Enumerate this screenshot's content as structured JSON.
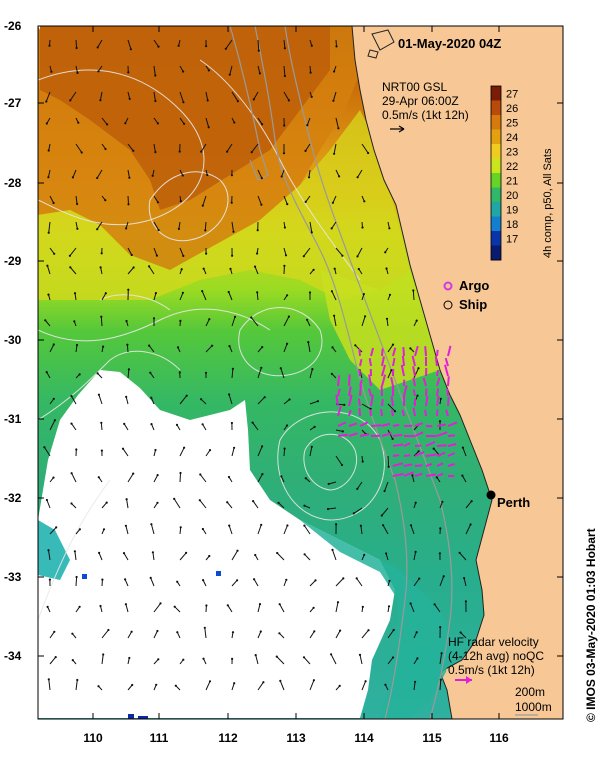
{
  "title": "01-May-2020 04Z",
  "nrt_label": {
    "line1": "NRT00 GSL",
    "line2": "29-Apr 06:00Z",
    "line3": "0.5m/s (1kt 12h)"
  },
  "colorbar": {
    "title": "4h comp, p50, All Sats",
    "ticks": [
      "27",
      "26",
      "25",
      "24",
      "23",
      "22",
      "21",
      "20",
      "19",
      "18",
      "17"
    ],
    "colors": [
      "#7a1d07",
      "#b84a0b",
      "#d77a0e",
      "#e3a010",
      "#f0cc20",
      "#c9e51c",
      "#66d426",
      "#2fb86a",
      "#1ea7a5",
      "#137fd0",
      "#0a35a8",
      "#091b6e"
    ]
  },
  "legend": {
    "argo": "Argo",
    "ship": "Ship",
    "argo_color": "#d33ae0"
  },
  "place": {
    "perth": "Perth"
  },
  "hf_radar": {
    "line1": "HF radar velocity",
    "line2": "(4-12h avg) noQC",
    "line3": "0.5m/s (1kt 12h)",
    "arrow_color": "#e020d8"
  },
  "depth_legend": {
    "line1": "200m",
    "line2": "1000m"
  },
  "axes": {
    "lat_ticks": [
      "-26",
      "-27",
      "-28",
      "-29",
      "-30",
      "-31",
      "-32",
      "-33",
      "-34"
    ],
    "lon_ticks": [
      "110",
      "111",
      "112",
      "113",
      "114",
      "115",
      "116"
    ]
  },
  "credit": "© IMOS 03-May-2020 01:03 Hobart",
  "colors": {
    "land": "#f7c896",
    "no_data": "#ffffff",
    "contour": "#dcdcdc",
    "isobath": "#9a9a9a"
  }
}
